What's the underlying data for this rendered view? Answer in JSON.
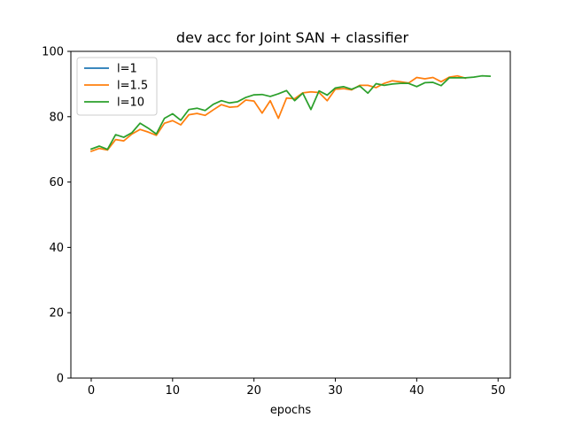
{
  "chart_data": {
    "type": "line",
    "title": "dev acc for Joint SAN + classifier",
    "xlabel": "epochs",
    "ylabel": "",
    "xlim": [
      -2.5,
      51.5
    ],
    "ylim": [
      0,
      100
    ],
    "xticks": [
      0,
      10,
      20,
      30,
      40,
      50
    ],
    "yticks": [
      0,
      20,
      40,
      60,
      80,
      100
    ],
    "grid": false,
    "legend_position": "top-left",
    "series": [
      {
        "name": "l=1",
        "color": "#1f77b4",
        "x": [],
        "values": []
      },
      {
        "name": "l=1.5",
        "color": "#ff7f0e",
        "x": [
          0,
          1,
          2,
          3,
          4,
          5,
          6,
          7,
          8,
          9,
          10,
          11,
          12,
          13,
          14,
          15,
          16,
          17,
          18,
          19,
          20,
          21,
          22,
          23,
          24,
          25,
          26,
          27,
          28,
          29,
          30,
          31,
          32,
          33,
          34,
          35,
          36,
          37,
          38,
          39,
          40,
          41,
          42,
          43,
          44,
          45,
          46
        ],
        "values": [
          69.4,
          70.3,
          69.8,
          73.0,
          72.6,
          74.7,
          76.1,
          75.3,
          74.3,
          78.0,
          78.8,
          77.5,
          80.6,
          81.0,
          80.4,
          82.1,
          83.7,
          82.9,
          83.1,
          85.1,
          84.8,
          81.1,
          84.9,
          79.5,
          85.7,
          85.5,
          87.3,
          87.6,
          87.4,
          84.9,
          88.4,
          88.6,
          88.2,
          89.6,
          89.6,
          88.9,
          90.2,
          91.0,
          90.7,
          90.3,
          92.0,
          91.6,
          92.0,
          90.7,
          92.1,
          92.5,
          91.8
        ]
      },
      {
        "name": "l=10",
        "color": "#2ca02c",
        "x": [
          0,
          1,
          2,
          3,
          4,
          5,
          6,
          7,
          8,
          9,
          10,
          11,
          12,
          13,
          14,
          15,
          16,
          17,
          18,
          19,
          20,
          21,
          22,
          23,
          24,
          25,
          26,
          27,
          28,
          29,
          30,
          31,
          32,
          33,
          34,
          35,
          36,
          37,
          38,
          39,
          40,
          41,
          42,
          43,
          44,
          45,
          46,
          47,
          48,
          49
        ],
        "values": [
          70.1,
          71.0,
          70.0,
          74.5,
          73.7,
          75.1,
          78.0,
          76.5,
          74.7,
          79.5,
          80.9,
          78.9,
          82.2,
          82.6,
          81.9,
          83.8,
          84.9,
          84.2,
          84.6,
          85.9,
          86.7,
          86.8,
          86.2,
          87.0,
          88.0,
          84.9,
          87.2,
          82.2,
          87.9,
          86.6,
          88.8,
          89.2,
          88.4,
          89.4,
          87.2,
          90.1,
          89.6,
          90.0,
          90.2,
          90.2,
          89.2,
          90.4,
          90.5,
          89.5,
          91.9,
          91.9,
          91.9,
          92.1,
          92.5,
          92.4
        ]
      }
    ]
  }
}
